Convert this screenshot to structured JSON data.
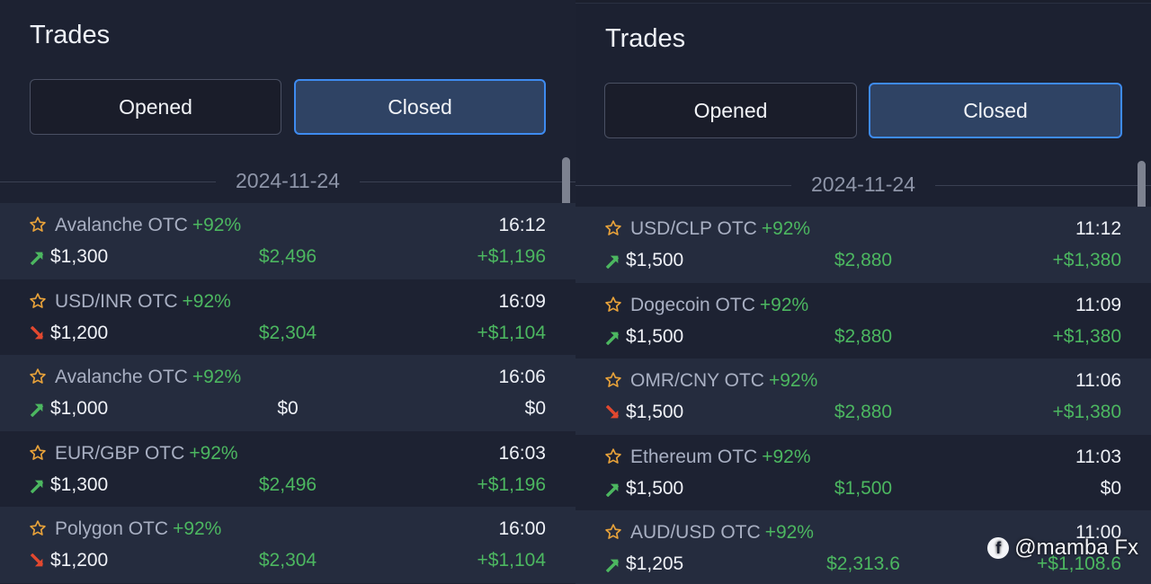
{
  "colors": {
    "accent": "#3e8bf0",
    "positive": "#4cb760",
    "negative": "#e2482f",
    "star": "#e8a23a"
  },
  "panels": [
    {
      "title": "Trades",
      "tabs": {
        "opened": "Opened",
        "closed": "Closed"
      },
      "date": "2024-11-24",
      "trades": [
        {
          "asset": "Avalanche OTC",
          "percent": "+92%",
          "time": "16:12",
          "direction": "up",
          "amount": "$1,300",
          "payout": "$2,496",
          "profit": "+$1,196",
          "win": true
        },
        {
          "asset": "USD/INR OTC",
          "percent": "+92%",
          "time": "16:09",
          "direction": "down",
          "amount": "$1,200",
          "payout": "$2,304",
          "profit": "+$1,104",
          "win": true
        },
        {
          "asset": "Avalanche OTC",
          "percent": "+92%",
          "time": "16:06",
          "direction": "up",
          "amount": "$1,000",
          "payout": "$0",
          "profit": "$0",
          "win": false
        },
        {
          "asset": "EUR/GBP OTC",
          "percent": "+92%",
          "time": "16:03",
          "direction": "up",
          "amount": "$1,300",
          "payout": "$2,496",
          "profit": "+$1,196",
          "win": true
        },
        {
          "asset": "Polygon OTC",
          "percent": "+92%",
          "time": "16:00",
          "direction": "down",
          "amount": "$1,200",
          "payout": "$2,304",
          "profit": "+$1,104",
          "win": true
        }
      ]
    },
    {
      "title": "Trades",
      "tabs": {
        "opened": "Opened",
        "closed": "Closed"
      },
      "date": "2024-11-24",
      "trades": [
        {
          "asset": "USD/CLP OTC",
          "percent": "+92%",
          "time": "11:12",
          "direction": "up",
          "amount": "$1,500",
          "payout": "$2,880",
          "profit": "+$1,380",
          "win": true
        },
        {
          "asset": "Dogecoin OTC",
          "percent": "+92%",
          "time": "11:09",
          "direction": "up",
          "amount": "$1,500",
          "payout": "$2,880",
          "profit": "+$1,380",
          "win": true
        },
        {
          "asset": "OMR/CNY OTC",
          "percent": "+92%",
          "time": "11:06",
          "direction": "down",
          "amount": "$1,500",
          "payout": "$2,880",
          "profit": "+$1,380",
          "win": true
        },
        {
          "asset": "Ethereum OTC",
          "percent": "+92%",
          "time": "11:03",
          "direction": "up",
          "amount": "$1,500",
          "payout": "$1,500",
          "profit": "$0",
          "win": false,
          "payout_green": true
        },
        {
          "asset": "AUD/USD OTC",
          "percent": "+92%",
          "time": "11:00",
          "direction": "up",
          "amount": "$1,205",
          "payout": "$2,313.6",
          "profit": "+$1,108.6",
          "win": true
        }
      ]
    }
  ],
  "watermark": {
    "icon": "facebook-icon",
    "text": "@mamba Fx"
  }
}
